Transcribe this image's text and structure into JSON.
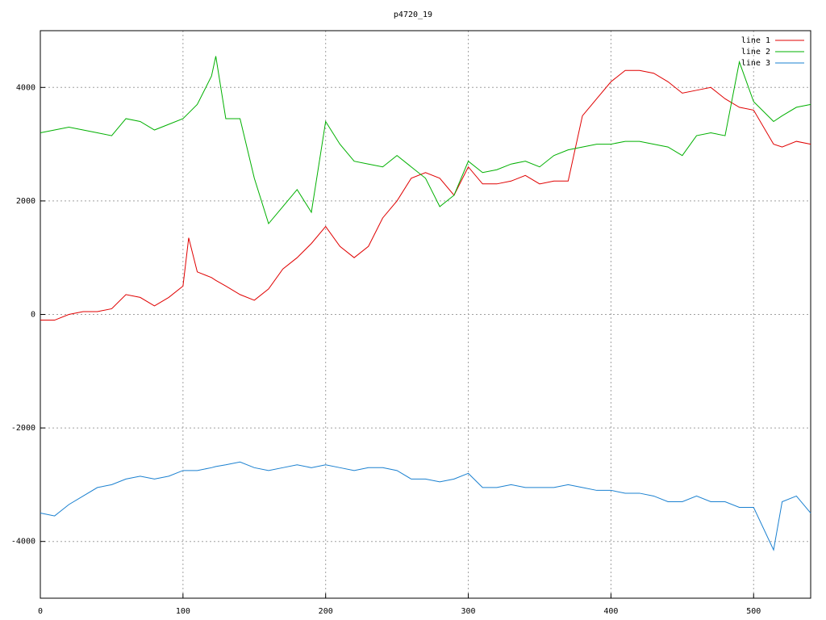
{
  "chart_data": {
    "type": "line",
    "title": "p4720_19",
    "x": [
      0,
      10,
      20,
      30,
      40,
      50,
      60,
      70,
      80,
      90,
      100,
      104,
      110,
      120,
      123,
      130,
      140,
      150,
      160,
      170,
      180,
      190,
      200,
      210,
      220,
      230,
      240,
      250,
      260,
      270,
      280,
      290,
      300,
      310,
      320,
      330,
      340,
      350,
      360,
      370,
      380,
      390,
      400,
      410,
      420,
      430,
      440,
      450,
      460,
      470,
      480,
      490,
      500,
      514,
      520,
      530,
      540
    ],
    "series": [
      {
        "name": "line 1",
        "color": "#e00000",
        "values": [
          -100,
          -100,
          0,
          50,
          50,
          100,
          350,
          300,
          150,
          300,
          500,
          1350,
          750,
          650,
          600,
          500,
          350,
          250,
          450,
          800,
          1000,
          1250,
          1550,
          1200,
          1000,
          1200,
          1700,
          2000,
          2400,
          2500,
          2400,
          2100,
          2600,
          2300,
          2300,
          2350,
          2450,
          2300,
          2350,
          2350,
          3500,
          3800,
          4100,
          4300,
          4300,
          4250,
          4100,
          3900,
          3950,
          4000,
          3800,
          3650,
          3600,
          3000,
          2950,
          3050,
          3000
        ]
      },
      {
        "name": "line 2",
        "color": "#00b000",
        "values": [
          3200,
          3250,
          3300,
          3250,
          3200,
          3150,
          3450,
          3400,
          3250,
          3350,
          3450,
          3550,
          3700,
          4200,
          4550,
          3450,
          3450,
          2400,
          1600,
          1900,
          2200,
          1800,
          3400,
          3000,
          2700,
          2650,
          2600,
          2800,
          2600,
          2400,
          1900,
          2100,
          2700,
          2500,
          2550,
          2650,
          2700,
          2600,
          2800,
          2900,
          2950,
          3000,
          3000,
          3050,
          3050,
          3000,
          2950,
          2800,
          3150,
          3200,
          3150,
          4450,
          3750,
          3400,
          3500,
          3650,
          3700
        ]
      },
      {
        "name": "line 3",
        "color": "#1a80d0",
        "values": [
          -3500,
          -3550,
          -3350,
          -3200,
          -3050,
          -3000,
          -2900,
          -2850,
          -2900,
          -2850,
          -2750,
          -2750,
          -2750,
          -2700,
          -2680,
          -2650,
          -2600,
          -2700,
          -2750,
          -2700,
          -2650,
          -2700,
          -2650,
          -2700,
          -2750,
          -2700,
          -2700,
          -2750,
          -2900,
          -2900,
          -2950,
          -2900,
          -2800,
          -3050,
          -3050,
          -3000,
          -3050,
          -3050,
          -3050,
          -3000,
          -3050,
          -3100,
          -3100,
          -3150,
          -3150,
          -3200,
          -3300,
          -3300,
          -3200,
          -3300,
          -3300,
          -3400,
          -3400,
          -4150,
          -3300,
          -3200,
          -3500
        ]
      }
    ],
    "xlim": [
      0,
      540
    ],
    "xticks": [
      0,
      100,
      200,
      300,
      400,
      500
    ],
    "ylim": [
      -5000,
      5000
    ],
    "yticks": [
      -4000,
      -2000,
      0,
      2000,
      4000
    ],
    "grid": true,
    "legend": "top-right"
  }
}
